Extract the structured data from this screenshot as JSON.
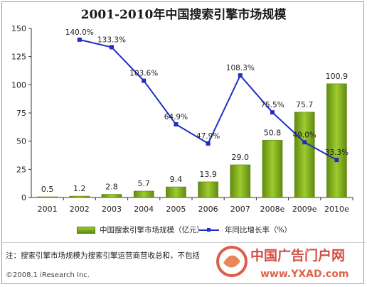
{
  "title": "2001-2010年中国搜索引擎市场规模",
  "chart_data": {
    "type": "bar",
    "categories": [
      "2001",
      "2002",
      "2003",
      "2004",
      "2005",
      "2006",
      "2007",
      "2008e",
      "2009e",
      "2010e"
    ],
    "ylim": [
      0,
      150
    ],
    "yticks": [
      0,
      25,
      50,
      75,
      100,
      125,
      150
    ],
    "series": [
      {
        "name": "中国搜索引擎市场规模（亿元）",
        "type": "bar",
        "color": "#7fb21a",
        "values": [
          0.5,
          1.2,
          2.8,
          5.7,
          9.4,
          13.9,
          29.0,
          50.8,
          75.7,
          100.9
        ],
        "labels": [
          "0.5",
          "1.2",
          "2.8",
          "5.7",
          "9.4",
          "13.9",
          "29.0",
          "50.8",
          "75.7",
          "100.9"
        ]
      },
      {
        "name": "年同比增长率（%）",
        "type": "line",
        "color": "#1f2fbf",
        "values": [
          null,
          140.0,
          133.3,
          103.6,
          64.9,
          47.9,
          108.3,
          75.5,
          49.0,
          33.3
        ],
        "labels": [
          "",
          "140.0%",
          "133.3%",
          "103.6%",
          "64.9%",
          "47.9%",
          "108.3%",
          "75.5%",
          "49.0%",
          "33.3%"
        ]
      }
    ],
    "grid": false,
    "legend": "bottom"
  },
  "note": "注：搜索引擎市场规模为搜索引擎运营商营收总和，不包括",
  "copyright": "©2008.1 iResearch Inc.",
  "watermark": {
    "text": "中国广告门户网",
    "url": "www.YXAD.com"
  }
}
